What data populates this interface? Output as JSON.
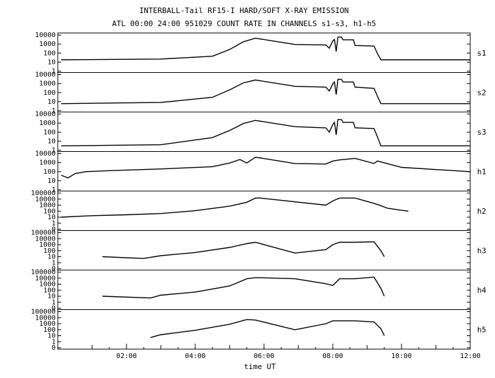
{
  "chart_data": {
    "type": "line",
    "title": "INTERBALL-Tail RF15-I HARD/SOFT X-RAY EMISSION",
    "subtitle": "ATL 00:00 24:00 951029  COUNT RATE IN CHANNELS s1-s3, h1-h5",
    "xlabel": "time UT",
    "xlim": [
      0,
      12
    ],
    "x_ticks": [
      2,
      4,
      6,
      8,
      10,
      12
    ],
    "x_tick_labels": [
      "02:00",
      "04:00",
      "06:00",
      "08:00",
      "10:00",
      "12:00"
    ],
    "yscale": "log",
    "grid": false,
    "panels": [
      {
        "channel": "s1",
        "y_ticks": [
          1,
          10,
          100,
          1000,
          10000
        ],
        "y_tick_labels": [
          "1",
          "10",
          "100",
          "1000",
          "10000"
        ],
        "x": [
          0.1,
          3.0,
          4.5,
          5.0,
          5.4,
          5.75,
          6.9,
          7.8,
          7.9,
          8.0,
          8.05,
          8.1,
          8.15,
          8.25,
          8.3,
          8.6,
          8.65,
          9.2,
          9.3,
          9.4,
          12.0
        ],
        "y": [
          18,
          22,
          45,
          250,
          1800,
          4500,
          900,
          800,
          350,
          2200,
          3200,
          150,
          6000,
          6000,
          3000,
          3000,
          700,
          600,
          90,
          18,
          18
        ]
      },
      {
        "channel": "s2",
        "y_ticks": [
          1,
          10,
          100,
          1000,
          10000
        ],
        "y_tick_labels": [
          "1",
          "10",
          "100",
          "1000",
          "10000"
        ],
        "x": [
          0.1,
          3.0,
          4.5,
          5.0,
          5.4,
          5.75,
          6.9,
          7.8,
          7.9,
          8.0,
          8.05,
          8.1,
          8.15,
          8.25,
          8.3,
          8.6,
          8.65,
          9.2,
          9.3,
          9.4,
          12.0
        ],
        "y": [
          6,
          8,
          30,
          200,
          1200,
          2500,
          500,
          400,
          150,
          900,
          1500,
          60,
          3000,
          3000,
          1500,
          1500,
          400,
          300,
          40,
          6,
          6
        ]
      },
      {
        "channel": "s3",
        "y_ticks": [
          1,
          10,
          100,
          1000,
          10000
        ],
        "y_tick_labels": [
          "1",
          "10",
          "100",
          "1000",
          "10000"
        ],
        "x": [
          0.1,
          3.0,
          4.5,
          5.0,
          5.4,
          5.75,
          6.9,
          7.8,
          7.9,
          8.0,
          8.05,
          8.1,
          8.15,
          8.25,
          8.3,
          8.6,
          8.65,
          9.2,
          9.3,
          9.4,
          12.0
        ],
        "y": [
          3,
          4,
          25,
          150,
          900,
          2000,
          400,
          300,
          100,
          700,
          1200,
          50,
          2500,
          2500,
          1200,
          1200,
          300,
          250,
          30,
          3,
          3
        ]
      },
      {
        "channel": "h1",
        "y_ticks": [
          1,
          10,
          100,
          1000,
          10000
        ],
        "y_tick_labels": [
          "1",
          "10",
          "100",
          "1000",
          "10000"
        ],
        "x": [
          0.1,
          0.3,
          0.5,
          0.8,
          1.5,
          3.0,
          4.5,
          5.0,
          5.3,
          5.5,
          5.75,
          6.9,
          7.8,
          8.0,
          8.2,
          8.65,
          9.2,
          9.3,
          10.0,
          12.0
        ],
        "y": [
          40,
          20,
          60,
          100,
          130,
          200,
          350,
          900,
          2200,
          900,
          4000,
          800,
          700,
          1500,
          2000,
          3000,
          800,
          1500,
          300,
          100
        ]
      },
      {
        "channel": "h2",
        "y_ticks": [
          0,
          1,
          10,
          100,
          1000,
          10000,
          100000
        ],
        "y_tick_labels": [
          "0",
          "1",
          "10",
          "100",
          "1000",
          "10000",
          "100000"
        ],
        "x": [
          0.1,
          1.0,
          2.0,
          3.0,
          4.0,
          5.0,
          5.5,
          5.75,
          5.9,
          7.8,
          8.0,
          8.2,
          8.65,
          9.2,
          9.4,
          9.6,
          10.2
        ],
        "y": [
          10,
          18,
          25,
          40,
          120,
          700,
          3000,
          15000,
          15000,
          1000,
          5000,
          15000,
          15000,
          2000,
          800,
          300,
          100
        ]
      },
      {
        "channel": "h3",
        "y_ticks": [
          0,
          1,
          10,
          100,
          1000,
          10000,
          100000
        ],
        "y_tick_labels": [
          "0",
          "1",
          "10",
          "100",
          "1000",
          "10000",
          "100000"
        ],
        "x": [
          1.3,
          2.5,
          3.0,
          4.0,
          5.0,
          5.5,
          5.75,
          6.9,
          7.8,
          8.0,
          8.2,
          8.65,
          9.2,
          9.4,
          9.5
        ],
        "y": [
          10,
          5,
          15,
          50,
          350,
          1500,
          2500,
          40,
          150,
          1000,
          2500,
          2500,
          3000,
          100,
          10
        ]
      },
      {
        "channel": "h4",
        "y_ticks": [
          0,
          1,
          10,
          100,
          1000,
          10000,
          100000
        ],
        "y_tick_labels": [
          "0",
          "1",
          "10",
          "100",
          "1000",
          "10000",
          "100000"
        ],
        "x": [
          1.3,
          2.7,
          3.0,
          4.0,
          5.0,
          5.5,
          5.75,
          5.9,
          6.9,
          7.8,
          8.0,
          8.2,
          8.65,
          9.2,
          9.4,
          9.5
        ],
        "y": [
          10,
          5,
          15,
          50,
          500,
          8000,
          12000,
          12000,
          8000,
          1200,
          600,
          8000,
          8000,
          15000,
          200,
          10
        ]
      },
      {
        "channel": "h5",
        "y_ticks": [
          0,
          1,
          10,
          100,
          1000,
          10000,
          100000
        ],
        "y_tick_labels": [
          "0",
          "1",
          "10",
          "100",
          "1000",
          "10000",
          "100000"
        ],
        "x": [
          2.7,
          3.0,
          4.0,
          5.0,
          5.5,
          5.75,
          6.9,
          7.8,
          8.0,
          8.2,
          8.65,
          9.2,
          9.4,
          9.5
        ],
        "y": [
          5,
          15,
          80,
          800,
          5000,
          4000,
          100,
          1000,
          3000,
          3000,
          3000,
          2000,
          150,
          10
        ]
      }
    ]
  }
}
